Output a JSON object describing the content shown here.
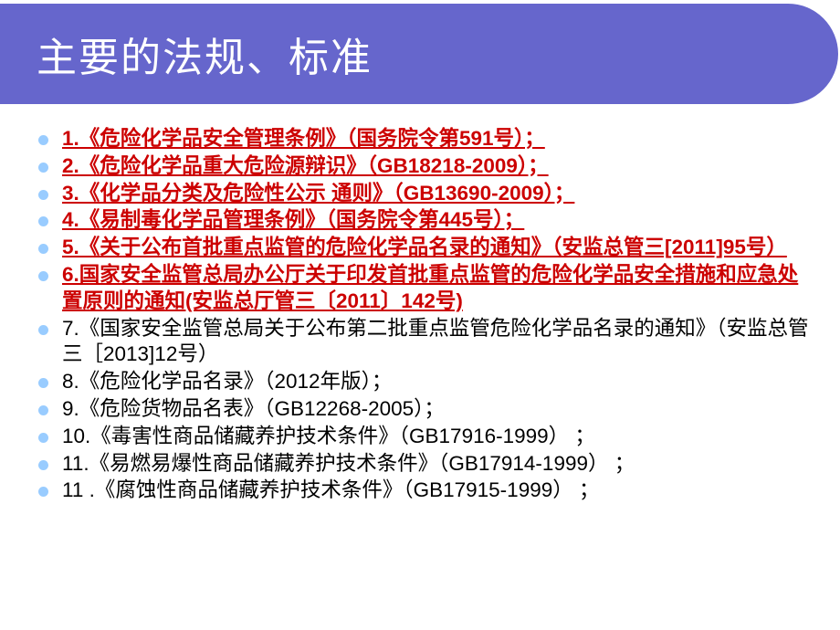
{
  "slide": {
    "title": "主要的法规、标准",
    "title_color": "#ffffff",
    "title_bg": "#6666cc",
    "title_fontsize": 44,
    "bullet_color": "#99ccff",
    "frame_border_color": "#000000",
    "items": [
      {
        "style": "red",
        "text": "1.《危险化学品安全管理条例》（国务院令第591号）；"
      },
      {
        "style": "red",
        "text": "2.《危险化学品重大危险源辩识》（GB18218-2009）；"
      },
      {
        "style": "red",
        "text": "3.《化学品分类及危险性公示 通则》（GB13690-2009）；"
      },
      {
        "style": "red",
        "text": "4.《易制毒化学品管理条例》（国务院令第445号）；"
      },
      {
        "style": "red",
        "text": "5.《关于公布首批重点监管的危险化学品名录的通知》（安监总管三[2011]95号）"
      },
      {
        "style": "red",
        "text": "6.国家安全监管总局办公厅关于印发首批重点监管的危险化学品安全措施和应急处置原则的通知(安监总厅管三〔2011〕142号)"
      },
      {
        "style": "black",
        "text": "7.《国家安全监管总局关于公布第二批重点监管危险化学品名录的通知》（安监总管三［2013]12号）"
      },
      {
        "style": "black",
        "text": "8.《危险化学品名录》（2012年版）；"
      },
      {
        "style": "black",
        "text": "9.《危险货物品名表》（GB12268-2005）；"
      },
      {
        "style": "black",
        "text": "10.《毒害性商品储藏养护技术条件》（GB17916-1999）  ；"
      },
      {
        "style": "black",
        "text": "11.《易燃易爆性商品储藏养护技术条件》（GB17914-1999）  ；"
      },
      {
        "style": "black",
        "text": "11 .《腐蚀性商品储藏养护技术条件》（GB17915-1999）  ；"
      }
    ]
  }
}
